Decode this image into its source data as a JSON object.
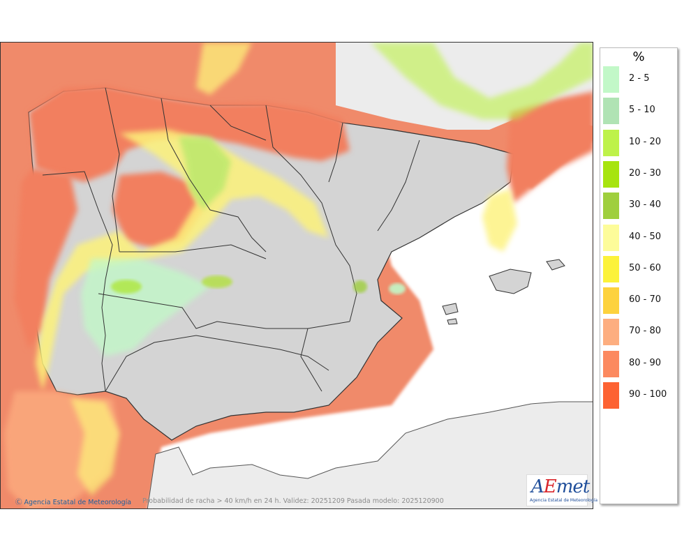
{
  "legend": {
    "title": "%",
    "items": [
      {
        "label": "2 - 5",
        "color": "#c2f8c8"
      },
      {
        "label": "5 - 10",
        "color": "#b0e3b4"
      },
      {
        "label": "10 - 20",
        "color": "#bef24a"
      },
      {
        "label": "20 - 30",
        "color": "#a7e40e"
      },
      {
        "label": "30 - 40",
        "color": "#9fcf3d"
      },
      {
        "label": "40 - 50",
        "color": "#fdfc9a"
      },
      {
        "label": "50 - 60",
        "color": "#fcf23a"
      },
      {
        "label": "60 - 70",
        "color": "#fdd23d"
      },
      {
        "label": "70 - 80",
        "color": "#fdae80"
      },
      {
        "label": "80 - 90",
        "color": "#fc895f"
      },
      {
        "label": "90 - 100",
        "color": "#fd6232"
      }
    ]
  },
  "map": {
    "caption": "Probabilidad de racha > 40 km/h en 24 h. Validez: 20251209 Pasada modelo: 2025120900",
    "copyright": "Ⓒ Agencia Estatal de Meteorología",
    "logo_text": "AEmet",
    "logo_subtext": "Agencia Estatal de Meteorología",
    "colors": {
      "land_gray": "#d3d3d3",
      "land_light": "#ececec",
      "sea_white": "#ffffff",
      "border_line": "#333333"
    }
  }
}
